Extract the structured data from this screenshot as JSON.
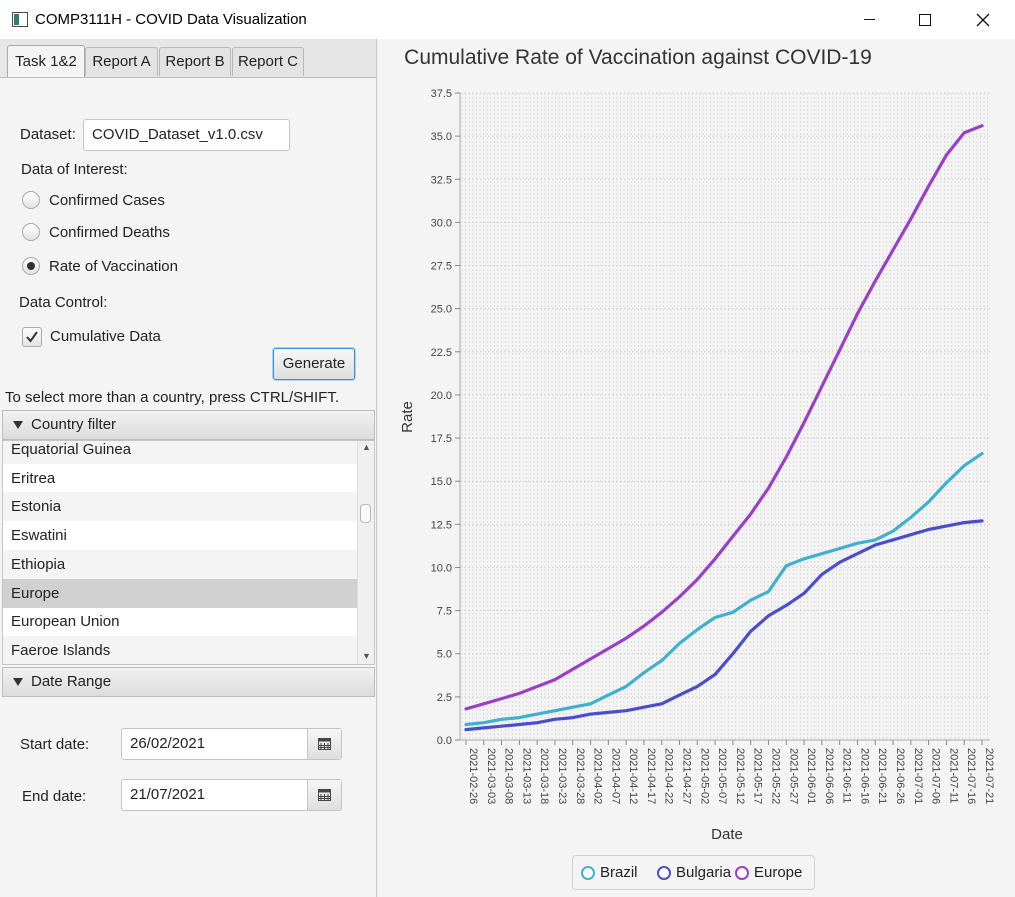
{
  "window": {
    "title": "COMP3111H - COVID Data Visualization"
  },
  "tabs": [
    {
      "label": "Task 1&2"
    },
    {
      "label": "Report A"
    },
    {
      "label": "Report B"
    },
    {
      "label": "Report C"
    }
  ],
  "form": {
    "dataset_label": "Dataset:",
    "dataset_value": "COVID_Dataset_v1.0.csv",
    "interest_label": "Data of Interest:",
    "radio_options": [
      "Confirmed Cases",
      "Confirmed Deaths",
      "Rate of Vaccination"
    ],
    "selected_option": "Rate of Vaccination",
    "control_label": "Data Control:",
    "cumulative_label": "Cumulative Data",
    "cumulative_checked": true,
    "generate_label": "Generate",
    "hint": "To select more than a country, press CTRL/SHIFT."
  },
  "country_filter": {
    "title": "Country filter",
    "items": [
      "Equatorial Guinea",
      "Eritrea",
      "Estonia",
      "Eswatini",
      "Ethiopia",
      "Europe",
      "European Union",
      "Faeroe Islands"
    ],
    "selected": "Europe"
  },
  "date_range": {
    "title": "Date Range",
    "start_label": "Start date:",
    "start_value": "26/02/2021",
    "end_label": "End date:",
    "end_value": "21/07/2021"
  },
  "chart_data": {
    "type": "line",
    "title": "Cumulative Rate of Vaccination against COVID-19",
    "xlabel": "Date",
    "ylabel": "Rate",
    "ylim": [
      0,
      37.5
    ],
    "yticks": [
      "0.0",
      "2.5",
      "5.0",
      "7.5",
      "10.0",
      "12.5",
      "15.0",
      "17.5",
      "20.0",
      "22.5",
      "25.0",
      "27.5",
      "30.0",
      "32.5",
      "35.0",
      "37.5"
    ],
    "x_tick_labels": [
      "2021-02-26",
      "2021-03-03",
      "2021-03-08",
      "2021-03-13",
      "2021-03-18",
      "2021-03-23",
      "2021-03-28",
      "2021-04-02",
      "2021-04-07",
      "2021-04-12",
      "2021-04-17",
      "2021-04-22",
      "2021-04-27",
      "2021-05-02",
      "2021-05-07",
      "2021-05-12",
      "2021-05-17",
      "2021-05-22",
      "2021-05-27",
      "2021-06-01",
      "2021-06-06",
      "2021-06-11",
      "2021-06-16",
      "2021-06-21",
      "2021-06-26",
      "2021-07-01",
      "2021-07-06",
      "2021-07-11",
      "2021-07-16",
      "2021-07-21"
    ],
    "x": [
      "2021-02-26",
      "2021-03-03",
      "2021-03-08",
      "2021-03-13",
      "2021-03-18",
      "2021-03-23",
      "2021-03-28",
      "2021-04-02",
      "2021-04-07",
      "2021-04-12",
      "2021-04-17",
      "2021-04-22",
      "2021-04-27",
      "2021-05-02",
      "2021-05-07",
      "2021-05-12",
      "2021-05-17",
      "2021-05-22",
      "2021-05-27",
      "2021-06-01",
      "2021-06-06",
      "2021-06-11",
      "2021-06-16",
      "2021-06-21",
      "2021-06-26",
      "2021-07-01",
      "2021-07-06",
      "2021-07-11",
      "2021-07-16",
      "2021-07-21"
    ],
    "grid": true,
    "legend_position": "bottom",
    "series": [
      {
        "name": "Brazil",
        "color": "#3fb1cf",
        "values": [
          0.9,
          1.0,
          1.2,
          1.3,
          1.5,
          1.7,
          1.9,
          2.1,
          2.6,
          3.1,
          3.9,
          4.6,
          5.6,
          6.4,
          7.1,
          7.4,
          8.1,
          8.6,
          10.1,
          10.5,
          10.8,
          11.1,
          11.4,
          11.6,
          12.1,
          12.9,
          13.8,
          14.9,
          15.9,
          16.6
        ]
      },
      {
        "name": "Bulgaria",
        "color": "#4a4fc9",
        "values": [
          0.6,
          0.7,
          0.8,
          0.9,
          1.0,
          1.2,
          1.3,
          1.5,
          1.6,
          1.7,
          1.9,
          2.1,
          2.6,
          3.1,
          3.8,
          5.0,
          6.3,
          7.2,
          7.8,
          8.5,
          9.6,
          10.3,
          10.8,
          11.3,
          11.6,
          11.9,
          12.2,
          12.4,
          12.6,
          12.7
        ]
      },
      {
        "name": "Europe",
        "color": "#9a3fc7",
        "values": [
          1.8,
          2.1,
          2.4,
          2.7,
          3.1,
          3.5,
          4.1,
          4.7,
          5.3,
          5.9,
          6.6,
          7.4,
          8.3,
          9.3,
          10.5,
          11.8,
          13.1,
          14.6,
          16.4,
          18.4,
          20.5,
          22.6,
          24.7,
          26.6,
          28.4,
          30.2,
          32.1,
          33.9,
          35.2,
          35.6
        ]
      }
    ]
  }
}
